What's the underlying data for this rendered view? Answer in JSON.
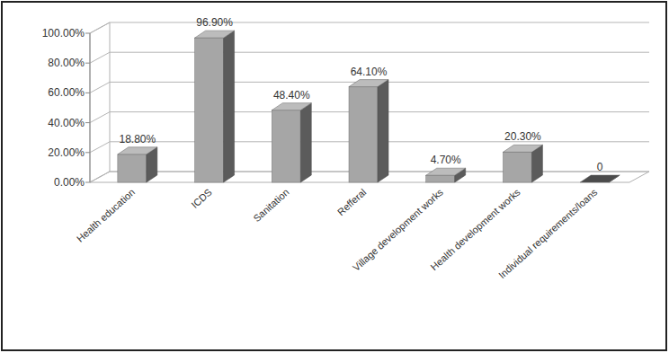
{
  "chart_data": {
    "type": "bar",
    "categories": [
      "Health education",
      "ICDS",
      "Sanitation",
      "Refferal",
      "Village development works",
      "Health development works",
      "Individual requirements/loans"
    ],
    "values": [
      18.8,
      96.9,
      48.4,
      64.1,
      4.7,
      20.3,
      0
    ],
    "value_labels": [
      "18.80%",
      "96.90%",
      "48.40%",
      "64.10%",
      "4.70%",
      "20.30%",
      "0"
    ],
    "color": "#a6a6a6",
    "ylim": [
      0,
      100
    ],
    "yticks": [
      {
        "value": 0,
        "label": "0.00%"
      },
      {
        "value": 20,
        "label": "20.00%"
      },
      {
        "value": 40,
        "label": "40.00%"
      },
      {
        "value": 60,
        "label": "60.00%"
      },
      {
        "value": 80,
        "label": "80.00%"
      },
      {
        "value": 100,
        "label": "100.00%"
      }
    ],
    "grid": true,
    "data_labels": true
  }
}
